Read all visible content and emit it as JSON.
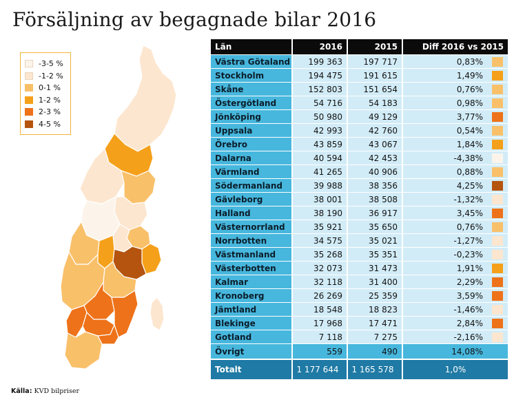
{
  "title": "Försäljning av begagnade bilar 2016",
  "source_label": "Källa:",
  "source_text": "KVD bilpriser",
  "colors": {
    "-3-5": "#fcf4ea",
    "-1-2": "#fde6cf",
    "0-1": "#f9c06a",
    "1-2": "#f5a01a",
    "2-3": "#ee7219",
    "4-5": "#b4540f"
  },
  "legend": [
    {
      "label": "-3-5 %",
      "color_key": "-3-5"
    },
    {
      "label": "-1-2 %",
      "color_key": "-1-2"
    },
    {
      "label": "0-1 %",
      "color_key": "0-1"
    },
    {
      "label": "1-2 %",
      "color_key": "1-2"
    },
    {
      "label": "2-3 %",
      "color_key": "2-3"
    },
    {
      "label": "4-5 %",
      "color_key": "4-5"
    }
  ],
  "table": {
    "headers": [
      "Län",
      "2016",
      "2015",
      "Diff 2016 vs 2015"
    ],
    "rows": [
      {
        "lan": "Västra Götaland",
        "y2016": "199 363",
        "y2015": "197 717",
        "diff": "0,83%",
        "color_key": "0-1"
      },
      {
        "lan": "Stockholm",
        "y2016": "194 475",
        "y2015": "191 615",
        "diff": "1,49%",
        "color_key": "1-2"
      },
      {
        "lan": "Skåne",
        "y2016": "152 803",
        "y2015": "151 654",
        "diff": "0,76%",
        "color_key": "0-1"
      },
      {
        "lan": "Östergötland",
        "y2016": "54 716",
        "y2015": "54 183",
        "diff": "0,98%",
        "color_key": "0-1"
      },
      {
        "lan": "Jönköping",
        "y2016": "50 980",
        "y2015": "49 129",
        "diff": "3,77%",
        "color_key": "2-3"
      },
      {
        "lan": "Uppsala",
        "y2016": "42 993",
        "y2015": "42 760",
        "diff": "0,54%",
        "color_key": "0-1"
      },
      {
        "lan": "Örebro",
        "y2016": "43 859",
        "y2015": "43 067",
        "diff": "1,84%",
        "color_key": "1-2"
      },
      {
        "lan": "Dalarna",
        "y2016": "40 594",
        "y2015": "42 453",
        "diff": "-4,38%",
        "color_key": "-3-5"
      },
      {
        "lan": "Värmland",
        "y2016": "41 265",
        "y2015": "40 906",
        "diff": "0,88%",
        "color_key": "0-1"
      },
      {
        "lan": "Södermanland",
        "y2016": "39 988",
        "y2015": "38 356",
        "diff": "4,25%",
        "color_key": "4-5"
      },
      {
        "lan": "Gävleborg",
        "y2016": "38 001",
        "y2015": "38 508",
        "diff": "-1,32%",
        "color_key": "-1-2"
      },
      {
        "lan": "Halland",
        "y2016": "38 190",
        "y2015": "36 917",
        "diff": "3,45%",
        "color_key": "2-3"
      },
      {
        "lan": "Västernorrland",
        "y2016": "35 921",
        "y2015": "35 650",
        "diff": "0,76%",
        "color_key": "0-1"
      },
      {
        "lan": "Norrbotten",
        "y2016": "34 575",
        "y2015": "35 021",
        "diff": "-1,27%",
        "color_key": "-1-2"
      },
      {
        "lan": "Västmanland",
        "y2016": "35 268",
        "y2015": "35 351",
        "diff": "-0,23%",
        "color_key": "-1-2"
      },
      {
        "lan": "Västerbotten",
        "y2016": "32 073",
        "y2015": "31 473",
        "diff": "1,91%",
        "color_key": "1-2"
      },
      {
        "lan": "Kalmar",
        "y2016": "32 118",
        "y2015": "31 400",
        "diff": "2,29%",
        "color_key": "2-3"
      },
      {
        "lan": "Kronoberg",
        "y2016": "26 269",
        "y2015": "25 359",
        "diff": "3,59%",
        "color_key": "2-3"
      },
      {
        "lan": "Jämtland",
        "y2016": "18 548",
        "y2015": "18 823",
        "diff": "-1,46%",
        "color_key": "-1-2"
      },
      {
        "lan": "Blekinge",
        "y2016": "17 968",
        "y2015": "17 471",
        "diff": "2,84%",
        "color_key": "2-3"
      },
      {
        "lan": "Gotland",
        "y2016": "7 118",
        "y2015": "7 275",
        "diff": "-2,16%",
        "color_key": "-1-2"
      }
    ],
    "ovrigt": {
      "lan": "Övrigt",
      "y2016": "559",
      "y2015": "490",
      "diff": "14,08%"
    },
    "total": {
      "lan": "Totalt",
      "y2016": "1 177 644",
      "y2015": "1 165 578",
      "diff": "1,0%"
    }
  },
  "chart_data": {
    "type": "table",
    "title": "Försäljning av begagnade bilar 2016",
    "columns": [
      "Län",
      "2016",
      "2015",
      "Diff 2016 vs 2015"
    ],
    "categories": [
      "Västra Götaland",
      "Stockholm",
      "Skåne",
      "Östergötland",
      "Jönköping",
      "Uppsala",
      "Örebro",
      "Dalarna",
      "Värmland",
      "Södermanland",
      "Gävleborg",
      "Halland",
      "Västernorrland",
      "Norrbotten",
      "Västmanland",
      "Västerbotten",
      "Kalmar",
      "Kronoberg",
      "Jämtland",
      "Blekinge",
      "Gotland",
      "Övrigt",
      "Totalt"
    ],
    "series": [
      {
        "name": "2016",
        "values": [
          199363,
          194475,
          152803,
          54716,
          50980,
          42993,
          43859,
          40594,
          41265,
          39988,
          38001,
          38190,
          35921,
          34575,
          35268,
          32073,
          32118,
          26269,
          18548,
          17968,
          7118,
          559,
          1177644
        ]
      },
      {
        "name": "2015",
        "values": [
          197717,
          191615,
          151654,
          54183,
          49129,
          42760,
          43067,
          42453,
          40906,
          38356,
          38508,
          36917,
          35650,
          35021,
          35351,
          31473,
          31400,
          25359,
          18823,
          17471,
          7275,
          490,
          1165578
        ]
      },
      {
        "name": "Diff 2016 vs 2015",
        "values": [
          0.83,
          1.49,
          0.76,
          0.98,
          3.77,
          0.54,
          1.84,
          -4.38,
          0.88,
          4.25,
          -1.32,
          3.45,
          0.76,
          -1.27,
          -0.23,
          1.91,
          2.29,
          3.59,
          -1.46,
          2.84,
          -2.16,
          14.08,
          1.0
        ]
      }
    ]
  }
}
